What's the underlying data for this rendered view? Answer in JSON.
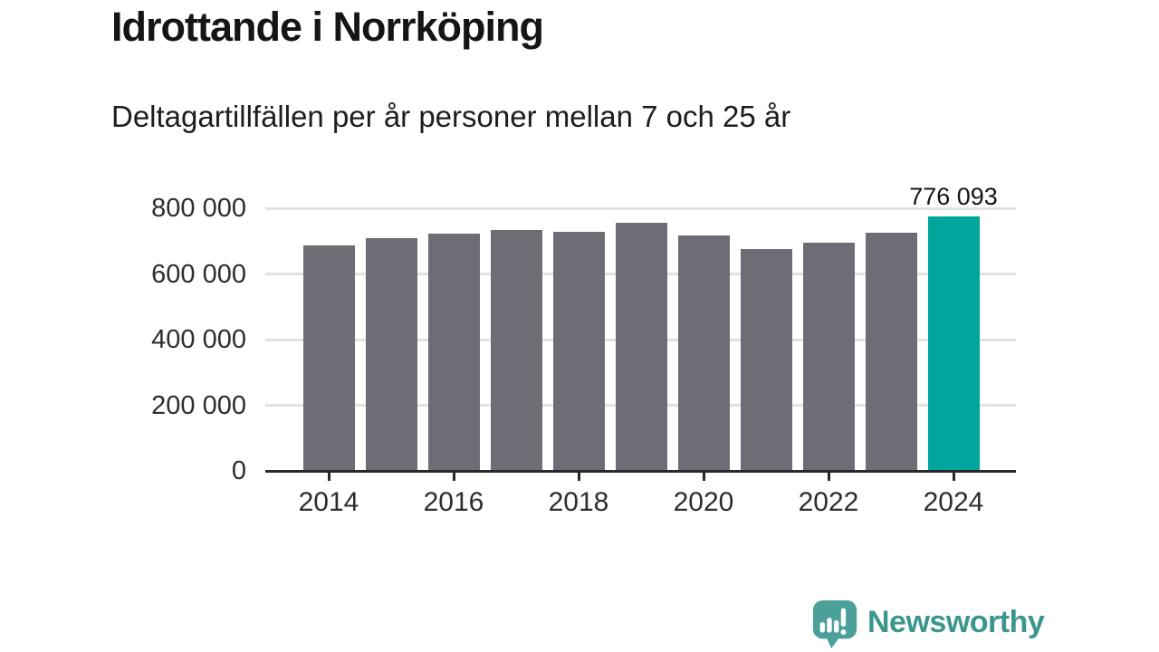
{
  "chart_data": {
    "type": "bar",
    "title": "Idrottande i Norrköping",
    "subtitle": "Deltagartillfällen per år personer mellan 7 och 25 år",
    "categories": [
      2014,
      2015,
      2016,
      2017,
      2018,
      2019,
      2020,
      2021,
      2022,
      2023,
      2024
    ],
    "values": [
      688000,
      710000,
      722000,
      735000,
      728000,
      755000,
      716000,
      675000,
      694000,
      726000,
      776093
    ],
    "highlight_index": 10,
    "bar_color": "#6e6c74",
    "highlight_color": "#00a69b",
    "annotation": {
      "text": "776 093",
      "bar_index": 10
    },
    "ylim": [
      0,
      800000
    ],
    "grid": "horizontal",
    "legend": "none",
    "yticks": [
      {
        "label": "800 000",
        "value": 800000
      },
      {
        "label": "600 000",
        "value": 600000
      },
      {
        "label": "400 000",
        "value": 400000
      },
      {
        "label": "200 000",
        "value": 200000
      },
      {
        "label": "0",
        "value": 0
      }
    ],
    "xticks": [
      {
        "label": "2014",
        "index": 0
      },
      {
        "label": "2016",
        "index": 2
      },
      {
        "label": "2018",
        "index": 4
      },
      {
        "label": "2020",
        "index": 6
      },
      {
        "label": "2022",
        "index": 8
      },
      {
        "label": "2024",
        "index": 10
      }
    ]
  },
  "footer": {
    "brand": "Newsworthy"
  },
  "colors": {
    "bar_gray": "#6e6c74",
    "highlight_teal": "#00a69b",
    "brand_teal": "#3b968e",
    "logo_bubble_teal": "#4ba19a",
    "grid_gray": "#e2e2e2",
    "axis_dark": "#2c282a"
  }
}
